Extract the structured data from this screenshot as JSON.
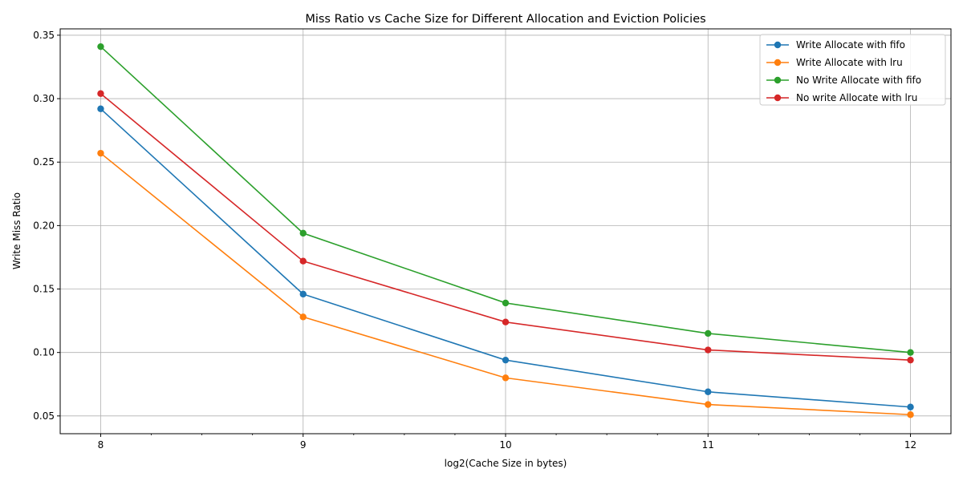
{
  "chart_data": {
    "type": "line",
    "title": "Miss Ratio vs Cache Size for Different Allocation and Eviction Policies",
    "xlabel": "log2(Cache Size in bytes)",
    "ylabel": "Write Miss Ratio",
    "x": [
      8,
      9,
      10,
      11,
      12
    ],
    "xticks": [
      "8",
      "9",
      "10",
      "11",
      "12"
    ],
    "yticks": [
      "0.05",
      "0.10",
      "0.15",
      "0.20",
      "0.25",
      "0.30",
      "0.35"
    ],
    "ytick_values": [
      0.05,
      0.1,
      0.15,
      0.2,
      0.25,
      0.3,
      0.35
    ],
    "xlim": [
      7.8,
      12.2
    ],
    "ylim": [
      0.036,
      0.355
    ],
    "grid": true,
    "legend_position": "top-right",
    "series": [
      {
        "name": "Write Allocate with fifo",
        "color": "#1f77b4",
        "values": [
          0.292,
          0.146,
          0.094,
          0.069,
          0.057
        ]
      },
      {
        "name": "Write Allocate with lru",
        "color": "#ff7f0e",
        "values": [
          0.257,
          0.128,
          0.08,
          0.059,
          0.051
        ]
      },
      {
        "name": "No Write Allocate with fifo",
        "color": "#2ca02c",
        "values": [
          0.341,
          0.194,
          0.139,
          0.115,
          0.1
        ]
      },
      {
        "name": "No write Allocate with lru",
        "color": "#d62728",
        "values": [
          0.304,
          0.172,
          0.124,
          0.102,
          0.094
        ]
      }
    ]
  }
}
